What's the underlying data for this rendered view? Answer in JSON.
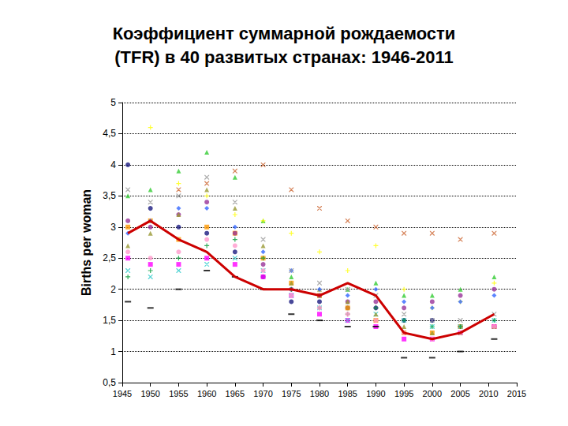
{
  "chart_data": {
    "type": "scatter",
    "title": "Коэффициент суммарной рождаемости\n(TFR) в 40 развитых странах: 1946-2011",
    "ylabel": "Births per woman",
    "x": [
      1946,
      1950,
      1955,
      1960,
      1965,
      1970,
      1975,
      1980,
      1985,
      1990,
      1995,
      2000,
      2005,
      2011
    ],
    "xlim": [
      1945,
      2015
    ],
    "xticks": [
      1945,
      1950,
      1955,
      1960,
      1965,
      1970,
      1975,
      1980,
      1985,
      1990,
      1995,
      2000,
      2005,
      2010,
      2015
    ],
    "ylim": [
      0.5,
      5
    ],
    "yticks": [
      {
        "value": 0.5,
        "label": "0,5"
      },
      1,
      {
        "value": 1.5,
        "label": "1,5"
      },
      2,
      {
        "value": 2.5,
        "label": "2,5"
      },
      3,
      {
        "value": 3.5,
        "label": "3,5"
      },
      4,
      {
        "value": 4.5,
        "label": "4,5"
      },
      5
    ],
    "grid": true,
    "series": [
      {
        "color": "#1a1a80",
        "marker": "circle",
        "values": [
          4.0,
          3.3,
          3.0,
          2.9,
          2.6,
          2.2,
          1.8,
          1.8,
          1.7,
          1.7,
          1.5,
          1.5,
          1.4,
          1.4
        ]
      },
      {
        "color": "#33cc33",
        "marker": "triangle",
        "values": [
          3.5,
          3.6,
          3.9,
          4.2,
          3.8,
          3.1,
          2.2,
          1.9,
          2.0,
          2.1,
          1.9,
          1.9,
          2.0,
          2.2
        ]
      },
      {
        "color": "#ffff00",
        "marker": "plus",
        "values": [
          null,
          4.6,
          3.7,
          3.5,
          3.2,
          3.1,
          2.9,
          2.6,
          2.3,
          2.7,
          2.0,
          1.7,
          1.8,
          2.1
        ]
      },
      {
        "color": "#cc6633",
        "marker": "x",
        "values": [
          null,
          null,
          3.6,
          3.7,
          3.9,
          4.0,
          3.6,
          3.3,
          3.1,
          3.0,
          2.9,
          2.9,
          2.8,
          2.9
        ]
      },
      {
        "color": "#ff9900",
        "marker": "square",
        "values": [
          3.0,
          3.1,
          2.8,
          3.0,
          2.9,
          2.5,
          2.1,
          1.9,
          1.7,
          1.5,
          1.3,
          1.3,
          1.4,
          1.4
        ]
      },
      {
        "color": "#ff00ff",
        "marker": "square",
        "values": [
          2.5,
          2.4,
          2.4,
          2.5,
          2.4,
          2.2,
          1.9,
          1.6,
          1.5,
          1.4,
          1.2,
          1.2,
          1.3,
          1.4
        ]
      },
      {
        "color": "#33cccc",
        "marker": "x",
        "values": [
          2.3,
          2.2,
          2.3,
          2.4,
          2.5,
          2.3,
          1.9,
          1.7,
          1.5,
          1.6,
          1.5,
          1.4,
          1.4,
          1.5
        ]
      },
      {
        "color": "#000000",
        "marker": "dash",
        "values": [
          1.8,
          1.7,
          2.0,
          2.3,
          2.2,
          2.0,
          1.6,
          1.5,
          1.4,
          1.4,
          0.9,
          0.9,
          1.0,
          1.2
        ]
      },
      {
        "color": "#993399",
        "marker": "circle",
        "values": [
          3.1,
          3.0,
          3.2,
          3.4,
          2.9,
          2.4,
          2.0,
          1.9,
          1.8,
          1.8,
          1.7,
          1.8,
          1.9,
          2.0
        ]
      },
      {
        "color": "#999933",
        "marker": "triangle",
        "values": [
          2.7,
          2.9,
          3.2,
          3.6,
          3.3,
          2.7,
          2.1,
          2.0,
          1.8,
          1.6,
          1.4,
          1.3,
          1.3,
          1.4
        ]
      },
      {
        "color": "#3366ff",
        "marker": "diamond",
        "values": [
          2.9,
          3.1,
          3.3,
          3.3,
          3.0,
          2.6,
          2.3,
          2.0,
          1.9,
          2.0,
          1.8,
          1.7,
          1.8,
          1.9
        ]
      },
      {
        "color": "#999999",
        "marker": "x",
        "values": [
          3.6,
          3.4,
          3.5,
          3.8,
          3.4,
          2.8,
          2.3,
          2.1,
          2.0,
          1.9,
          1.6,
          1.5,
          1.5,
          1.6
        ]
      },
      {
        "color": "#009933",
        "marker": "plus",
        "values": [
          2.2,
          2.3,
          2.5,
          2.7,
          2.8,
          2.5,
          2.0,
          1.7,
          1.6,
          1.7,
          1.5,
          1.4,
          1.4,
          1.5
        ]
      },
      {
        "color": "#ff99cc",
        "marker": "circle",
        "values": [
          2.6,
          2.5,
          2.6,
          2.8,
          2.7,
          2.3,
          1.9,
          1.7,
          1.6,
          1.5,
          1.3,
          1.2,
          1.3,
          1.4
        ]
      },
      {
        "type": "line",
        "color": "#cc0000",
        "line_style": "solid",
        "values": [
          2.9,
          3.1,
          2.8,
          2.6,
          2.2,
          2.0,
          2.0,
          1.9,
          2.1,
          1.9,
          1.3,
          1.2,
          1.3,
          1.6
        ]
      }
    ]
  }
}
